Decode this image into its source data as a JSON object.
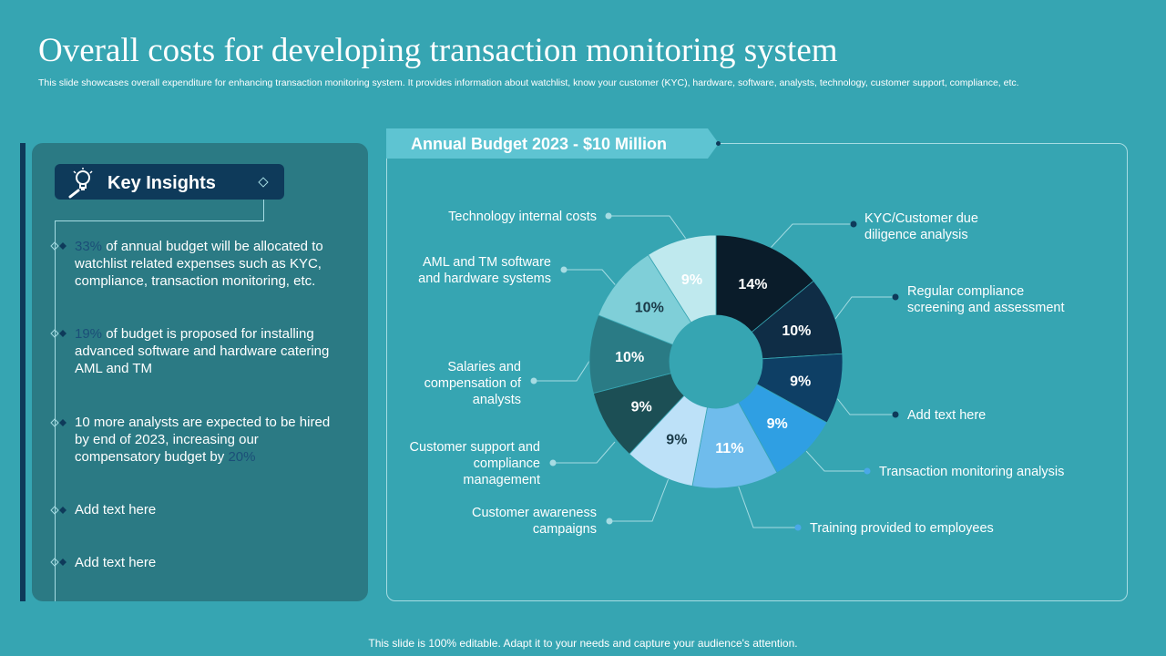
{
  "slide": {
    "title": "Overall costs for developing transaction monitoring system",
    "subtitle": "This slide showcases overall expenditure for enhancing transaction monitoring system. It provides information about watchlist, know your customer (KYC), hardware, software, analysts, technology, customer support, compliance, etc.",
    "footer": "This slide is 100% editable. Adapt it to your needs and capture your audience's attention."
  },
  "insights": {
    "title": "Key Insights",
    "icon": "lightbulb-magnifier-icon",
    "items": [
      {
        "highlight": "33%",
        "text": " of annual budget will be allocated to watchlist related expenses such as KYC, compliance, transaction monitoring, etc."
      },
      {
        "highlight": "19%",
        "text": " of budget is proposed for installing advanced software and hardware catering AML and TM"
      },
      {
        "text": "10 more analysts are expected to be hired by end of 2023, increasing our compensatory budget by ",
        "highlight": "20%"
      },
      {
        "text": "Add text here"
      },
      {
        "text": "Add text here"
      }
    ]
  },
  "colors": {
    "background": "#36a5b2",
    "panel": "#2b7a84",
    "dark_navy": "#0e3a5a",
    "highlight": "#1b4f78",
    "banner": "#5ec4d2"
  },
  "chart_data": {
    "type": "pie",
    "variant": "donut",
    "title": "Annual Budget 2023 - $10 Million",
    "start": "12 o'clock, clockwise",
    "slices": [
      {
        "label": "KYC/Customer due diligence analysis",
        "value": 14,
        "display": "14%",
        "color": "#0a1c2a"
      },
      {
        "label": "Regular compliance screening and assessment",
        "value": 10,
        "display": "10%",
        "color": "#0f2d46"
      },
      {
        "label": "Add text here",
        "value": 9,
        "display": "9%",
        "color": "#0e3f65"
      },
      {
        "label": "Transaction monitoring analysis",
        "value": 9,
        "display": "9%",
        "color": "#2f9fe3"
      },
      {
        "label": "Training provided to employees",
        "value": 11,
        "display": "11%",
        "color": "#6fbcec"
      },
      {
        "label": "Customer awareness campaigns",
        "value": 9,
        "display": "9%",
        "color": "#bde1f8"
      },
      {
        "label": "Customer support and compliance management",
        "value": 9,
        "display": "9%",
        "color": "#1c4f55"
      },
      {
        "label": "Salaries and compensation of analysts",
        "value": 10,
        "display": "10%",
        "color": "#2a7b85"
      },
      {
        "label": "AML and TM software and hardware systems",
        "value": 10,
        "display": "10%",
        "color": "#7fcfd8"
      },
      {
        "label": "Technology internal costs",
        "value": 9,
        "display": "9%",
        "color": "#bfe9ee"
      }
    ]
  }
}
